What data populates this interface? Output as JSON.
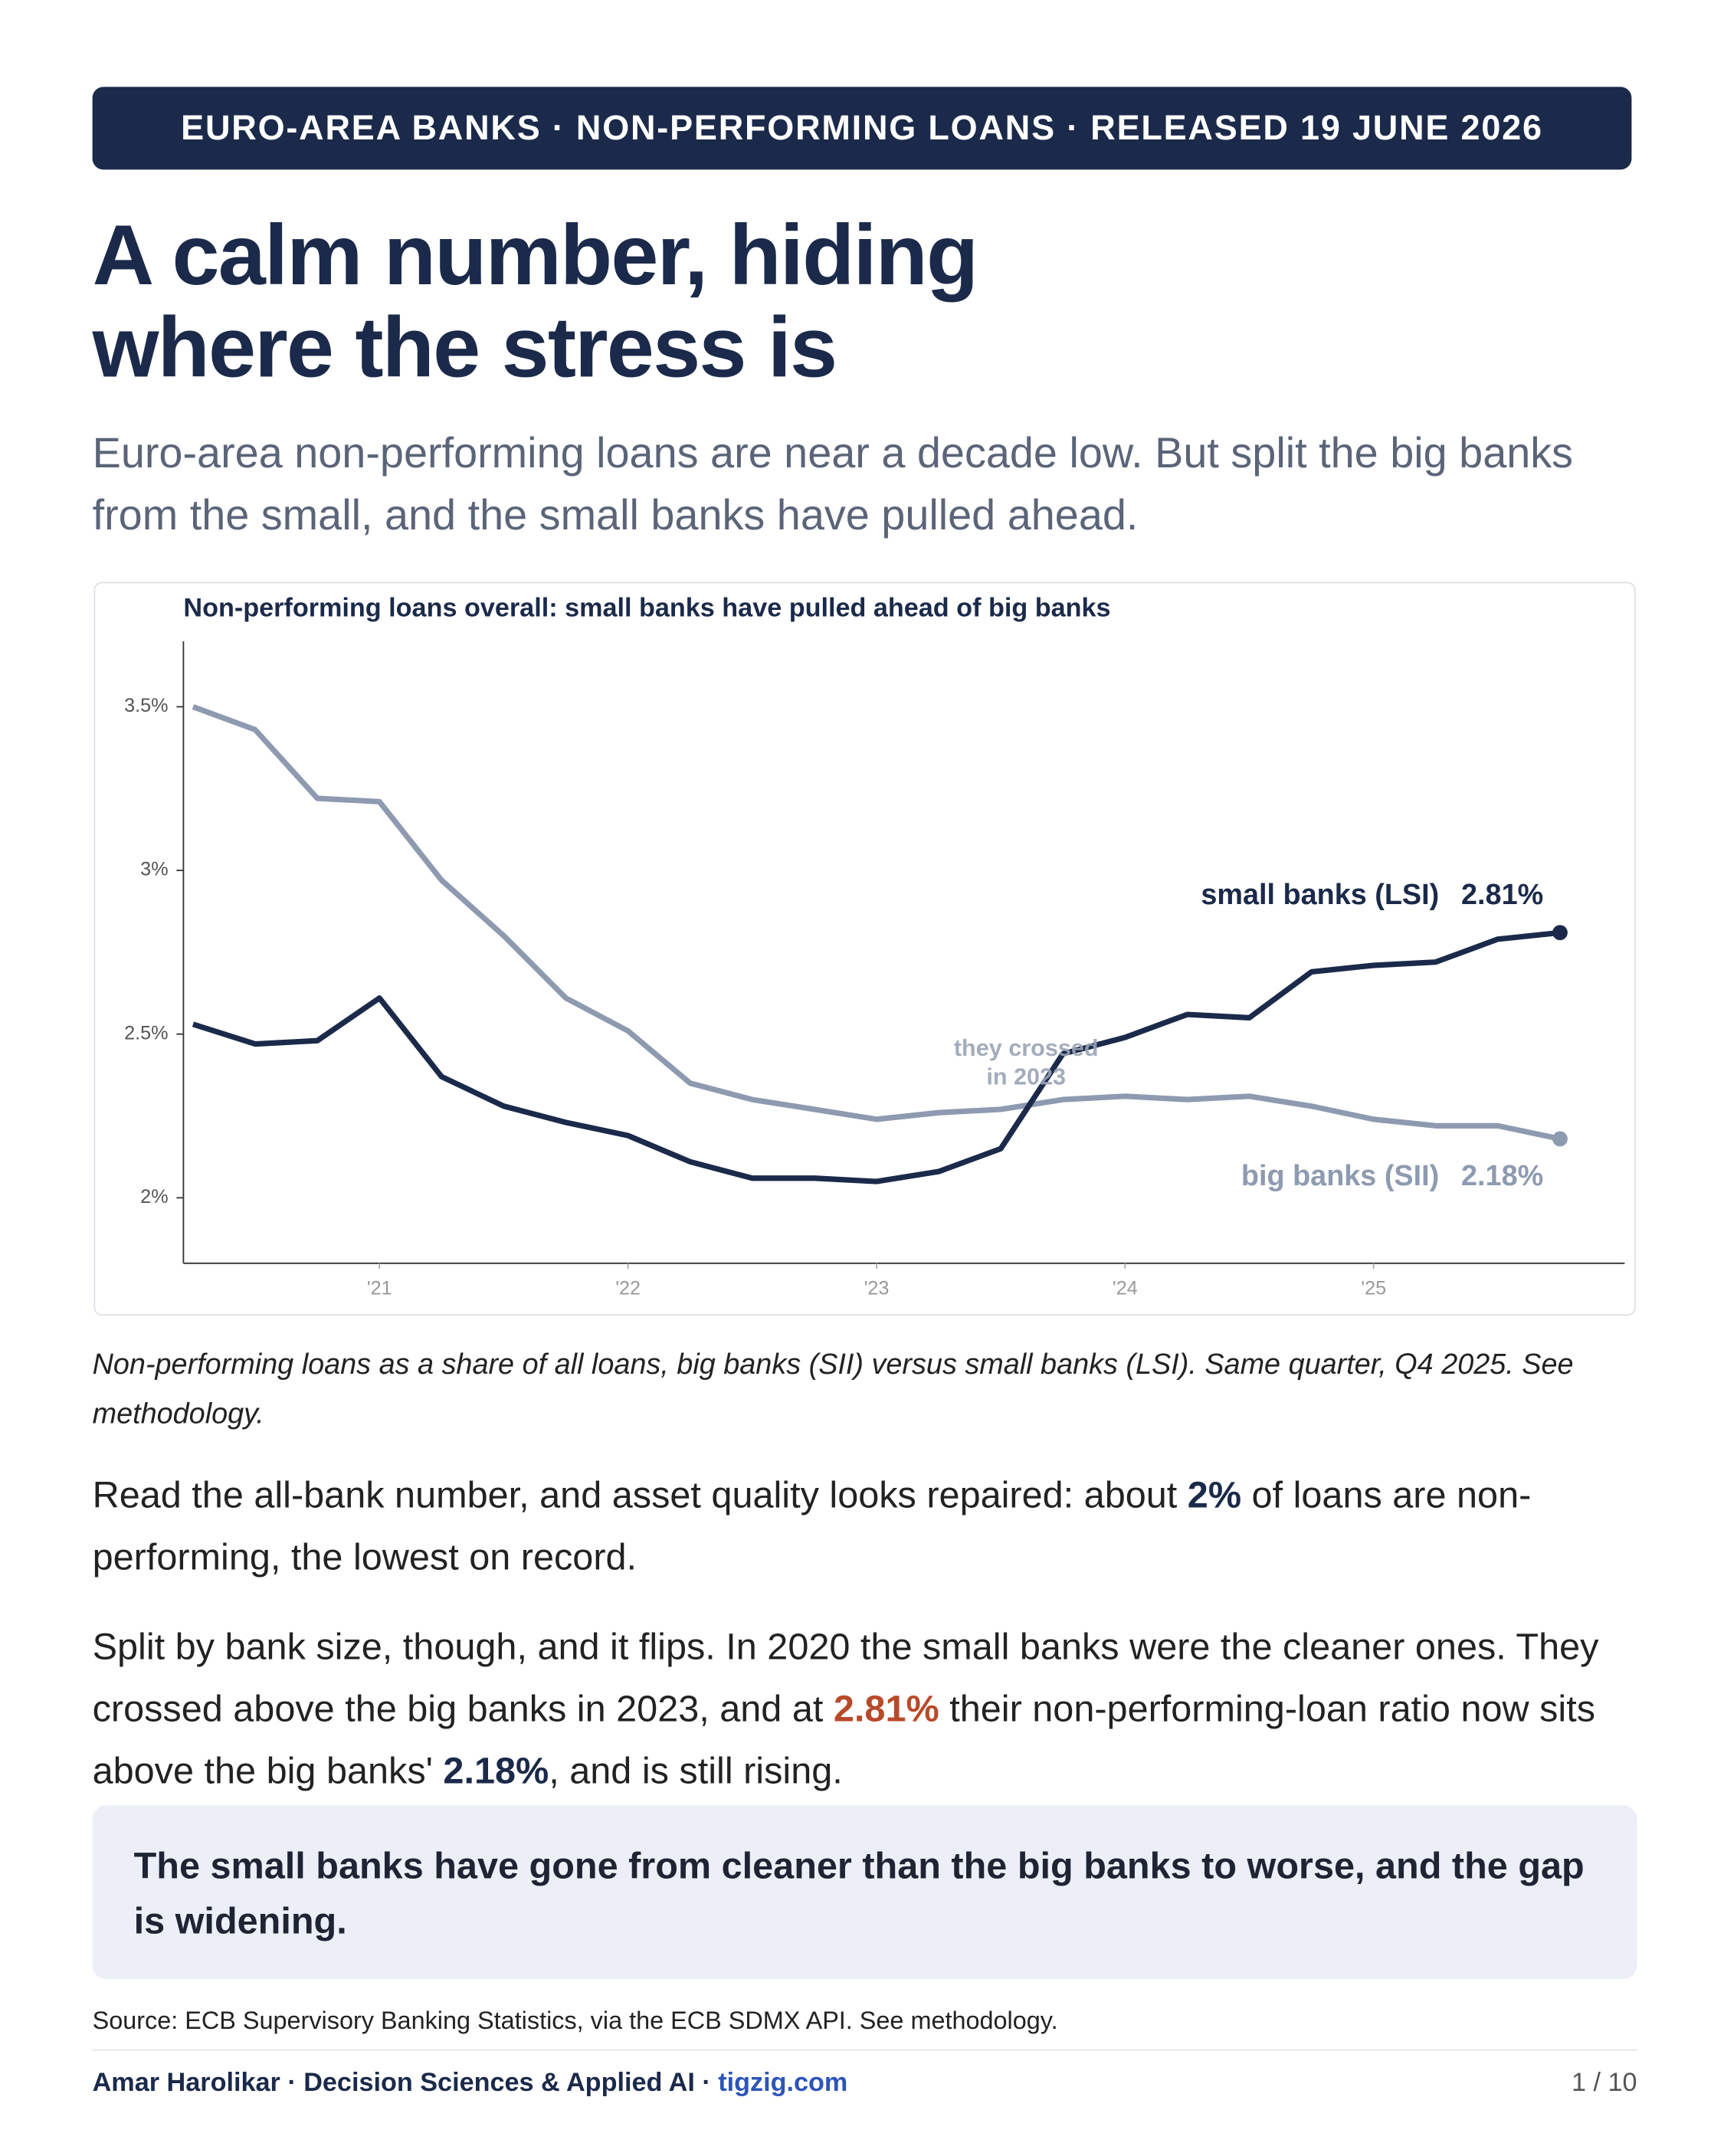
{
  "header": {
    "kicker": "EURO-AREA BANKS · NON-PERFORMING LOANS · RELEASED 19 JUNE 2026",
    "title": [
      "A calm number, hiding",
      "where the stress is"
    ],
    "subtitle": "Euro-area non-performing loans are near a decade low. But split the big banks from the small, and the small banks have pulled ahead."
  },
  "chart_data": {
    "type": "line",
    "title": "Non-performing loans overall: small banks have pulled ahead of big banks",
    "categories": [
      null,
      null,
      null,
      "'21",
      null,
      null,
      null,
      "'22",
      null,
      null,
      null,
      "'23",
      null,
      null,
      null,
      "'24",
      null,
      null,
      null,
      "'25",
      null,
      null,
      null
    ],
    "ylim": [
      1.8,
      3.7
    ],
    "yticks": [
      {
        "value": 2,
        "label": "2%"
      },
      {
        "value": 2.5,
        "label": "2.5%"
      },
      {
        "value": 3,
        "label": "3%"
      },
      {
        "value": 3.5,
        "label": "3.5%"
      }
    ],
    "series": [
      {
        "name": "big banks (SII)",
        "color": "#8e9ab0",
        "values": [
          3.5,
          3.43,
          3.22,
          3.21,
          2.97,
          2.8,
          2.61,
          2.51,
          2.35,
          2.3,
          2.27,
          2.24,
          2.26,
          2.27,
          2.3,
          2.31,
          2.3,
          2.31,
          2.28,
          2.24,
          2.22,
          2.22,
          2.18
        ],
        "value_labels": [
          null,
          null,
          null,
          null,
          null,
          null,
          null,
          null,
          null,
          null,
          null,
          null,
          null,
          null,
          null,
          null,
          null,
          null,
          null,
          null,
          null,
          null,
          "2.18%"
        ]
      },
      {
        "name": "small banks (LSI)",
        "color": "#1b2a4a",
        "values": [
          2.53,
          2.47,
          2.48,
          2.61,
          2.37,
          2.28,
          2.23,
          2.19,
          2.11,
          2.06,
          2.06,
          2.05,
          2.08,
          2.15,
          2.44,
          2.49,
          2.56,
          2.55,
          2.69,
          2.71,
          2.72,
          2.79,
          2.81
        ],
        "value_labels": [
          null,
          null,
          null,
          null,
          null,
          null,
          null,
          null,
          null,
          null,
          null,
          null,
          null,
          null,
          null,
          null,
          null,
          null,
          null,
          null,
          null,
          null,
          "2.81%"
        ]
      }
    ],
    "annotation": [
      "they crossed",
      "in 2023"
    ]
  },
  "caption": "Non-performing loans as a share of all loans, big banks (SII) versus small banks (LSI). Same quarter, Q4 2025. See methodology.",
  "paragraphs": [
    [
      "Read the all-bank number, and asset quality looks repaired: about ",
      "2%",
      " of loans are non-performing, the lowest on record."
    ],
    [
      "Split by bank size, though, and it flips. In 2020 the small banks were the cleaner ones. They crossed above the big banks in 2023, and at ",
      "2.81%",
      " their non-performing-loan ratio now sits above the big banks' ",
      "2.18%",
      ", and is still rising."
    ]
  ],
  "callout": "The small banks have gone from cleaner than the big banks to worse, and the gap is widening.",
  "source": "Source: ECB Supervisory Banking Statistics, via the ECB SDMX API. See methodology.",
  "footer": {
    "author": "Amar Harolikar · Decision Sciences & Applied AI · ",
    "site": "tigzig.com",
    "page": "1 / 10"
  }
}
